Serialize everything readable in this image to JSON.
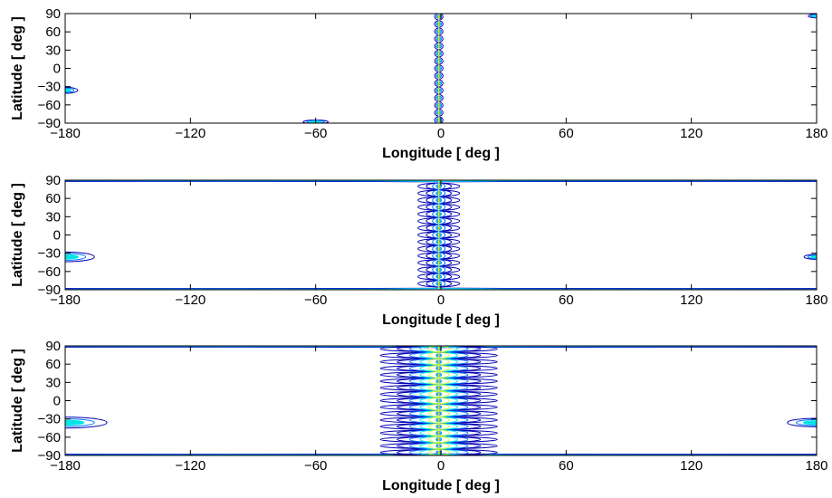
{
  "chart_data": [
    {
      "type": "contour",
      "xlabel": "Longitude [ deg ]",
      "ylabel": "Latitude [ deg ]",
      "xlim": [
        -180,
        180
      ],
      "ylim": [
        -90,
        90
      ],
      "xticks": [
        -180,
        -120,
        -60,
        0,
        60,
        120,
        180
      ],
      "yticks": [
        90,
        60,
        30,
        0,
        -30,
        -60,
        -90
      ],
      "xticklabels": [
        "−180",
        "−120",
        "−60",
        "0",
        "60",
        "120",
        "180"
      ],
      "yticklabels": [
        "90",
        "60",
        "30",
        "0",
        "−30",
        "−60",
        "−90"
      ],
      "grid": false,
      "central_band": {
        "center_lon": -1,
        "lat_min": -85,
        "lat_max": 85,
        "blob_count": 15,
        "half_width_lon": [
          2
        ]
      },
      "pole_bands": false,
      "edge_features": [
        {
          "lon": -180,
          "lat": -36,
          "size_lon": 6,
          "size_lat": 5
        },
        {
          "lon": 180,
          "lat": 86,
          "size_lon": 4,
          "size_lat": 3
        },
        {
          "lon": -60,
          "lat": -88,
          "size_lon": 6,
          "size_lat": 3
        }
      ]
    },
    {
      "type": "contour",
      "xlabel": "Longitude [ deg ]",
      "ylabel": "Latitude [ deg ]",
      "xlim": [
        -180,
        180
      ],
      "ylim": [
        -90,
        90
      ],
      "xticks": [
        -180,
        -120,
        -60,
        0,
        60,
        120,
        180
      ],
      "yticks": [
        90,
        60,
        30,
        0,
        -30,
        -60,
        -90
      ],
      "xticklabels": [
        "−180",
        "−120",
        "−60",
        "0",
        "60",
        "120",
        "180"
      ],
      "yticklabels": [
        "90",
        "60",
        "30",
        "0",
        "−30",
        "−60",
        "−90"
      ],
      "grid": false,
      "central_band": {
        "center_lon": -1,
        "lat_min": -80,
        "lat_max": 80,
        "blob_count": 15,
        "half_width_lon": [
          10,
          6,
          3
        ]
      },
      "pole_bands": true,
      "edge_features": [
        {
          "lon": -180,
          "lat": -36,
          "size_lon": 14,
          "size_lat": 8
        },
        {
          "lon": 180,
          "lat": -36,
          "size_lon": 6,
          "size_lat": 4
        }
      ]
    },
    {
      "type": "contour",
      "xlabel": "Longitude [ deg ]",
      "ylabel": "Latitude [ deg ]",
      "xlim": [
        -180,
        180
      ],
      "ylim": [
        -90,
        90
      ],
      "xticks": [
        -180,
        -120,
        -60,
        0,
        60,
        120,
        180
      ],
      "yticks": [
        90,
        60,
        30,
        0,
        -30,
        -60,
        -90
      ],
      "xticklabels": [
        "−180",
        "−120",
        "−60",
        "0",
        "60",
        "120",
        "180"
      ],
      "yticklabels": [
        "90",
        "60",
        "30",
        "0",
        "−30",
        "−60",
        "−90"
      ],
      "grid": false,
      "central_band": {
        "center_lon": -1,
        "lat_min": -85,
        "lat_max": 85,
        "blob_count": 17,
        "half_width_lon": [
          28,
          20,
          14,
          9,
          5
        ]
      },
      "pole_bands": true,
      "edge_features": [
        {
          "lon": -180,
          "lat": -36,
          "size_lon": 20,
          "size_lat": 9
        },
        {
          "lon": 180,
          "lat": -36,
          "size_lon": 14,
          "size_lat": 7
        }
      ]
    }
  ],
  "colors": {
    "outer": "#0000b4",
    "mid": "#0073ff",
    "inner": "#00e6e6",
    "core": "#c8ff40",
    "peak": "#ff6000",
    "axis": "#000000"
  }
}
